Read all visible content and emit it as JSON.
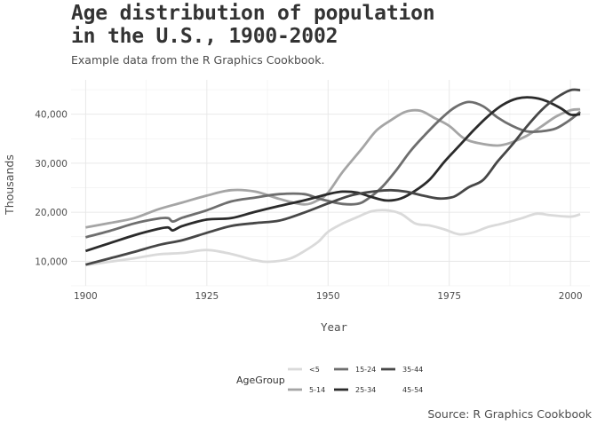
{
  "chart_data": {
    "type": "line",
    "title": "Age distribution of population in the U.S., 1900-2002",
    "title_lines": [
      "Age distribution of population",
      "in the U.S., 1900-2002"
    ],
    "subtitle": "Example data from the R Graphics Cookbook.",
    "caption": "Source: R Graphics Cookbook",
    "xlabel": "Year",
    "ylabel": "Thousands",
    "xlim": [
      1897,
      2004
    ],
    "ylim": [
      5000,
      47000
    ],
    "xticks": [
      1900,
      1925,
      1950,
      1975,
      2000
    ],
    "yticks": [
      10000,
      20000,
      30000,
      40000
    ],
    "ytick_labels": [
      "10,000",
      "20,000",
      "30,000",
      "40,000"
    ],
    "grid": true,
    "legend": {
      "title": "AgeGroup",
      "position": "bottom",
      "entries": [
        "<5",
        "5-14",
        "15-24",
        "25-34",
        "35-44",
        "45-54"
      ]
    },
    "series": [
      {
        "name": "<5",
        "color": "#dadada",
        "points": [
          [
            1900,
            9200
          ],
          [
            1905,
            9900
          ],
          [
            1910,
            10600
          ],
          [
            1915,
            11400
          ],
          [
            1920,
            11700
          ],
          [
            1925,
            12300
          ],
          [
            1930,
            11500
          ],
          [
            1935,
            10200
          ],
          [
            1938,
            9900
          ],
          [
            1942,
            10500
          ],
          [
            1945,
            12000
          ],
          [
            1948,
            14000
          ],
          [
            1950,
            16000
          ],
          [
            1953,
            17700
          ],
          [
            1956,
            19000
          ],
          [
            1959,
            20200
          ],
          [
            1962,
            20400
          ],
          [
            1965,
            19700
          ],
          [
            1968,
            17700
          ],
          [
            1971,
            17300
          ],
          [
            1974,
            16500
          ],
          [
            1977,
            15500
          ],
          [
            1980,
            15900
          ],
          [
            1983,
            17000
          ],
          [
            1986,
            17700
          ],
          [
            1990,
            18800
          ],
          [
            1993,
            19700
          ],
          [
            1996,
            19400
          ],
          [
            2000,
            19100
          ],
          [
            2002,
            19600
          ]
        ]
      },
      {
        "name": "5-14",
        "color": "#a5a5a5",
        "points": [
          [
            1900,
            16900
          ],
          [
            1905,
            17800
          ],
          [
            1910,
            18800
          ],
          [
            1915,
            20600
          ],
          [
            1920,
            22000
          ],
          [
            1925,
            23400
          ],
          [
            1930,
            24500
          ],
          [
            1935,
            24200
          ],
          [
            1940,
            22700
          ],
          [
            1945,
            21600
          ],
          [
            1948,
            22500
          ],
          [
            1950,
            24000
          ],
          [
            1953,
            28200
          ],
          [
            1957,
            33000
          ],
          [
            1960,
            36700
          ],
          [
            1963,
            38800
          ],
          [
            1966,
            40500
          ],
          [
            1969,
            40700
          ],
          [
            1972,
            39200
          ],
          [
            1975,
            37600
          ],
          [
            1978,
            35100
          ],
          [
            1981,
            34100
          ],
          [
            1985,
            33600
          ],
          [
            1988,
            34300
          ],
          [
            1991,
            35600
          ],
          [
            1994,
            37500
          ],
          [
            1997,
            39500
          ],
          [
            2000,
            40800
          ],
          [
            2002,
            41000
          ]
        ]
      },
      {
        "name": "15-24",
        "color": "#6e6e6e",
        "points": [
          [
            1900,
            14900
          ],
          [
            1905,
            16200
          ],
          [
            1910,
            17700
          ],
          [
            1915,
            18700
          ],
          [
            1917,
            18800
          ],
          [
            1918,
            18100
          ],
          [
            1920,
            18900
          ],
          [
            1925,
            20400
          ],
          [
            1930,
            22200
          ],
          [
            1935,
            23000
          ],
          [
            1940,
            23700
          ],
          [
            1945,
            23700
          ],
          [
            1948,
            22800
          ],
          [
            1950,
            22300
          ],
          [
            1953,
            21700
          ],
          [
            1956,
            21700
          ],
          [
            1958,
            22600
          ],
          [
            1961,
            25000
          ],
          [
            1964,
            28500
          ],
          [
            1967,
            32500
          ],
          [
            1970,
            35800
          ],
          [
            1973,
            38800
          ],
          [
            1976,
            41300
          ],
          [
            1979,
            42500
          ],
          [
            1982,
            41600
          ],
          [
            1985,
            39300
          ],
          [
            1988,
            37600
          ],
          [
            1991,
            36500
          ],
          [
            1994,
            36500
          ],
          [
            1997,
            37100
          ],
          [
            2000,
            38900
          ],
          [
            2002,
            40500
          ]
        ]
      },
      {
        "name": "25-34",
        "color": "#2b2b2b",
        "points": [
          [
            1900,
            12100
          ],
          [
            1905,
            13700
          ],
          [
            1910,
            15300
          ],
          [
            1915,
            16600
          ],
          [
            1917,
            16900
          ],
          [
            1918,
            16300
          ],
          [
            1920,
            17200
          ],
          [
            1925,
            18500
          ],
          [
            1930,
            18800
          ],
          [
            1935,
            20100
          ],
          [
            1940,
            21300
          ],
          [
            1945,
            22400
          ],
          [
            1950,
            23700
          ],
          [
            1953,
            24200
          ],
          [
            1956,
            24000
          ],
          [
            1959,
            23100
          ],
          [
            1962,
            22400
          ],
          [
            1965,
            22800
          ],
          [
            1968,
            24400
          ],
          [
            1971,
            26700
          ],
          [
            1974,
            30300
          ],
          [
            1977,
            33500
          ],
          [
            1980,
            36700
          ],
          [
            1983,
            39600
          ],
          [
            1986,
            41900
          ],
          [
            1989,
            43200
          ],
          [
            1992,
            43400
          ],
          [
            1995,
            42700
          ],
          [
            1998,
            41200
          ],
          [
            2000,
            39900
          ],
          [
            2002,
            40000
          ]
        ]
      },
      {
        "name": "35-44",
        "color": "#474747",
        "points": [
          [
            1900,
            9300
          ],
          [
            1905,
            10600
          ],
          [
            1910,
            11900
          ],
          [
            1915,
            13300
          ],
          [
            1920,
            14300
          ],
          [
            1925,
            15800
          ],
          [
            1930,
            17200
          ],
          [
            1935,
            17800
          ],
          [
            1940,
            18300
          ],
          [
            1945,
            19900
          ],
          [
            1950,
            21800
          ],
          [
            1955,
            23500
          ],
          [
            1960,
            24300
          ],
          [
            1963,
            24500
          ],
          [
            1966,
            24200
          ],
          [
            1970,
            23300
          ],
          [
            1973,
            22800
          ],
          [
            1976,
            23200
          ],
          [
            1979,
            25100
          ],
          [
            1982,
            26600
          ],
          [
            1985,
            30400
          ],
          [
            1988,
            33800
          ],
          [
            1991,
            37500
          ],
          [
            1994,
            40800
          ],
          [
            1997,
            43300
          ],
          [
            2000,
            44900
          ],
          [
            2002,
            44900
          ]
        ]
      },
      {
        "name": "45-54",
        "color": "#ffffff",
        "points": []
      }
    ]
  }
}
